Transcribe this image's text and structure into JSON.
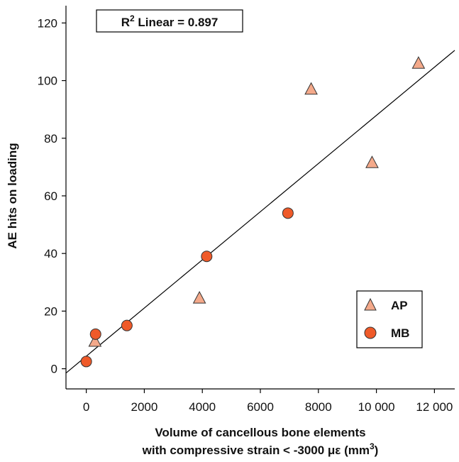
{
  "chart_data": {
    "type": "scatter",
    "xlabel_line1": "Volume of cancellous bone elements",
    "xlabel_line2_prefix": "with compressive strain < -3000 με (mm",
    "xlabel_line2_sup": "3",
    "xlabel_line2_suffix": ")",
    "ylabel": "AE hits on loading",
    "xlim": [
      -700,
      12700
    ],
    "ylim": [
      -7,
      126
    ],
    "xticks": [
      0,
      2000,
      4000,
      6000,
      8000,
      10000,
      12000
    ],
    "xtick_labels": [
      "0",
      "2000",
      "4000",
      "6000",
      "8000",
      "10 000",
      "12 000"
    ],
    "yticks": [
      0,
      20,
      40,
      60,
      80,
      100,
      120
    ],
    "ytick_labels": [
      "0",
      "20",
      "40",
      "60",
      "80",
      "100",
      "120"
    ],
    "annotation": {
      "prefix": "R",
      "sup": "2",
      "suffix": " Linear = 0.897"
    },
    "fit_line": {
      "x": [
        -700,
        12700
      ],
      "y": [
        -1.5,
        110.5
      ]
    },
    "series": [
      {
        "name": "AP",
        "marker": "triangle",
        "color": "#f4a98a",
        "x": [
          300,
          3900,
          7750,
          9850,
          11450
        ],
        "y": [
          9.5,
          24.5,
          97,
          71.5,
          106
        ]
      },
      {
        "name": "MB",
        "marker": "circle",
        "color": "#ef5a29",
        "x": [
          0,
          320,
          1400,
          4150,
          6950
        ],
        "y": [
          2.5,
          12,
          15,
          39,
          54
        ]
      }
    ],
    "legend_position": "lower-right",
    "grid": false
  }
}
